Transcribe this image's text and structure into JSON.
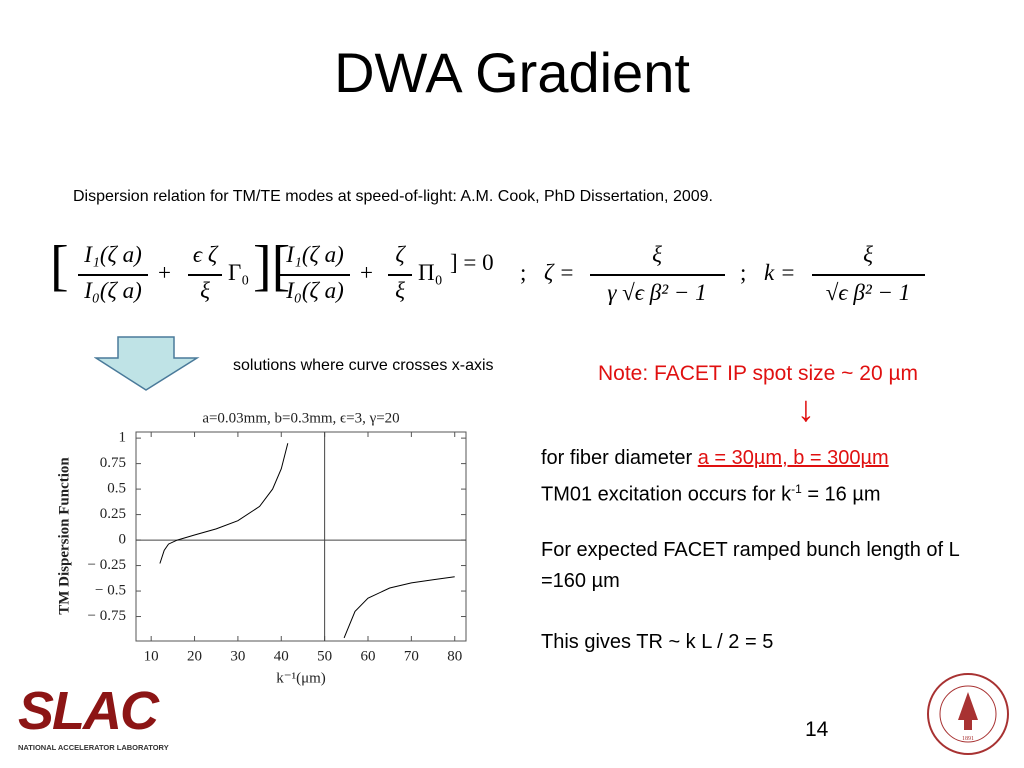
{
  "slide": {
    "title": "DWA Gradient",
    "subtitle": "Dispersion relation for TM/TE modes at speed-of-light:  A.M. Cook, PhD Dissertation, 2009.",
    "equation": [
      "[",
      "I₁(ζ a)",
      "I₀(ζ a)",
      "+",
      "ϵ ζ",
      "ξ",
      "Γ₀",
      "][",
      "I₁(ζ a)",
      "I₀(ζ a)",
      "+",
      "ζ",
      "ξ",
      "Π₀",
      "] = 0",
      ";",
      "ζ =",
      "ξ",
      "γ √ϵ β² − 1",
      ";",
      "k =",
      "ξ",
      "√ϵ β² − 1"
    ],
    "caption": "solutions where curve crosses x-axis",
    "note": "Note: FACET IP spot size ~ 20 µm",
    "note_arrow": "↓",
    "paragraphs": [
      {
        "line1_prefix": "for fiber diameter ",
        "line1_highlight": "a = 30µm, b = 300µm",
        "line2_prefix": "TM01 excitation occurs for k",
        "line2_sup": "-1",
        "line2_suffix": " = 16 µm"
      },
      {
        "text": "For expected FACET ramped bunch length of L =160 µm"
      },
      {
        "text": "This gives TR ~ k L / 2 = 5"
      }
    ],
    "page_number": "14",
    "logo": "SLAC",
    "logo_subtitle": "NATIONAL ACCELERATOR LABORATORY",
    "seal_year": "1891"
  },
  "chart_data": {
    "type": "line",
    "title": "a=0.03mm, b=0.3mm, ϵ=3, γ=20",
    "x_label": "k⁻¹(μm)",
    "y_label": "TM Dispersion Function",
    "x": [
      12,
      13,
      14,
      16,
      20,
      25,
      30,
      35,
      38,
      40,
      41.5,
      43,
      54.5,
      57,
      60,
      65,
      70,
      75,
      80
    ],
    "series": [
      {
        "color": "#000000",
        "values": [
          -0.23,
          -0.1,
          -0.04,
          0,
          0.05,
          0.11,
          0.19,
          0.33,
          0.5,
          0.7,
          0.95,
          null,
          -0.96,
          -0.7,
          -0.57,
          -0.47,
          -0.42,
          -0.39,
          -0.36
        ]
      }
    ],
    "xlim": [
      6.5,
      82.6
    ],
    "ylim": [
      -0.99,
      1.06
    ],
    "xticks": [
      10,
      20,
      30,
      40,
      50,
      60,
      70,
      80
    ],
    "yticks": [
      1,
      0.75,
      0.5,
      0.25,
      0,
      {
        "value": -0.25,
        "label": "− 0.25"
      },
      {
        "value": -0.5,
        "label": "− 0.5"
      },
      {
        "value": -0.75,
        "label": "− 0.75"
      }
    ],
    "axis_cross": [
      50,
      0
    ],
    "grid": false
  }
}
